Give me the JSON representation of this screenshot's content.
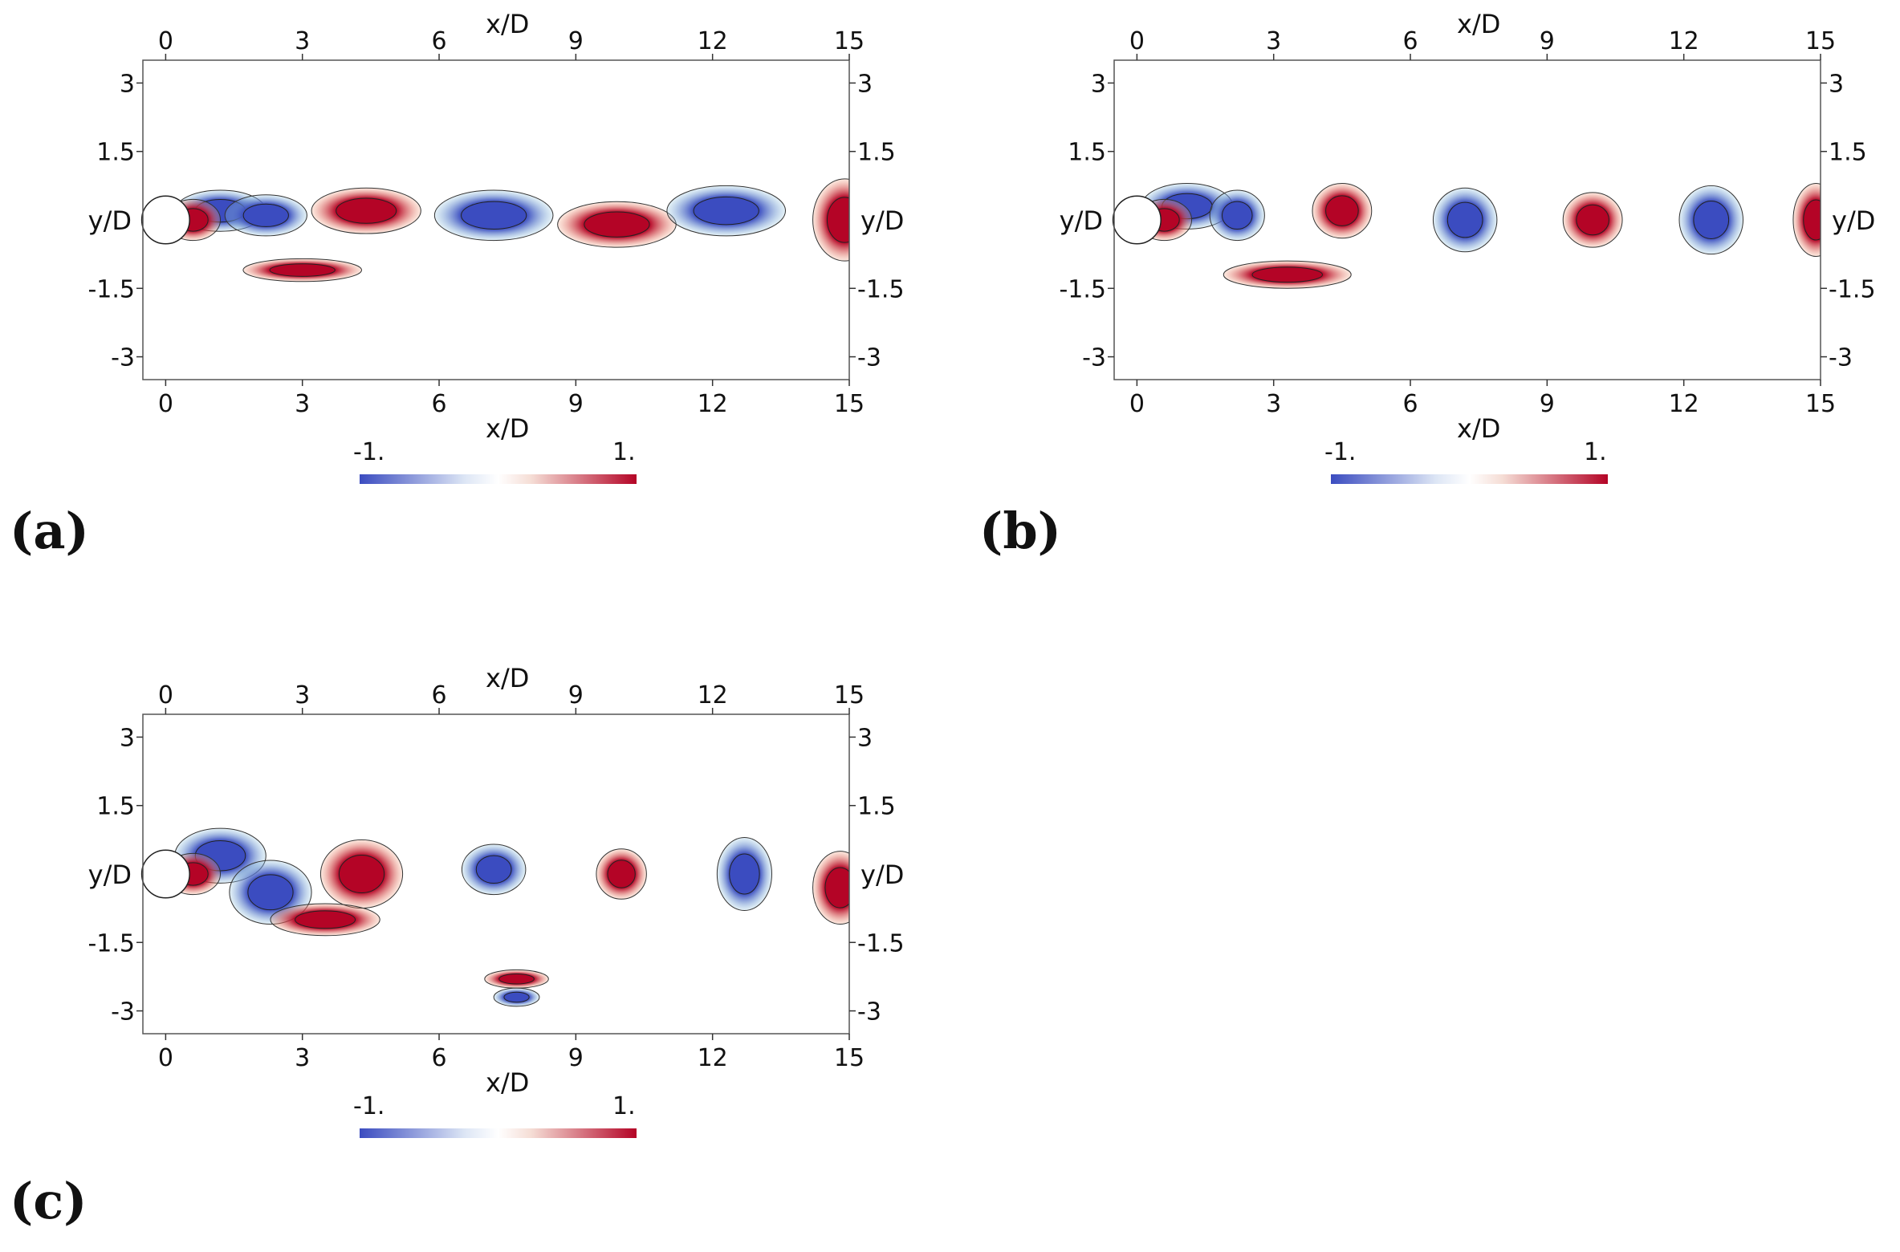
{
  "chart_data": [
    {
      "type": "heatmap",
      "panel_label": "(a)",
      "xlabel": "x/D",
      "ylabel": "y/D",
      "xlim": [
        -0.5,
        15
      ],
      "ylim": [
        -3.5,
        3.5
      ],
      "x_ticks": [
        "0",
        "3",
        "6",
        "9",
        "12",
        "15"
      ],
      "y_ticks": [
        "3",
        "1.5",
        "0",
        "-1.5",
        "-3"
      ],
      "colorbar": {
        "min_label": "-1.",
        "max_label": "1.",
        "min_color": "#3b4cc0",
        "max_color": "#b40426"
      },
      "vortices": [
        {
          "x": 1.2,
          "y": 0.2,
          "rx": 1.0,
          "ry": 0.45,
          "sign": -1
        },
        {
          "x": 0.6,
          "y": 0.0,
          "rx": 0.6,
          "ry": 0.45,
          "sign": 1
        },
        {
          "x": 2.2,
          "y": 0.1,
          "rx": 0.9,
          "ry": 0.45,
          "sign": -1
        },
        {
          "x": 4.4,
          "y": 0.2,
          "rx": 1.2,
          "ry": 0.5,
          "sign": 1
        },
        {
          "x": 7.2,
          "y": 0.1,
          "rx": 1.3,
          "ry": 0.55,
          "sign": -1
        },
        {
          "x": 9.9,
          "y": -0.1,
          "rx": 1.3,
          "ry": 0.5,
          "sign": 1
        },
        {
          "x": 12.3,
          "y": 0.2,
          "rx": 1.3,
          "ry": 0.55,
          "sign": -1
        },
        {
          "x": 14.9,
          "y": 0.0,
          "rx": 0.7,
          "ry": 0.9,
          "sign": 1
        },
        {
          "x": 3.0,
          "y": -1.1,
          "rx": 1.3,
          "ry": 0.25,
          "sign": 1
        }
      ]
    },
    {
      "type": "heatmap",
      "panel_label": "(b)",
      "xlabel": "x/D",
      "ylabel": "y/D",
      "xlim": [
        -0.5,
        15
      ],
      "ylim": [
        -3.5,
        3.5
      ],
      "x_ticks": [
        "0",
        "3",
        "6",
        "9",
        "12",
        "15"
      ],
      "y_ticks": [
        "3",
        "1.5",
        "0",
        "-1.5",
        "-3"
      ],
      "colorbar": {
        "min_label": "-1.",
        "max_label": "1.",
        "min_color": "#3b4cc0",
        "max_color": "#b40426"
      },
      "vortices": [
        {
          "x": 1.1,
          "y": 0.3,
          "rx": 1.0,
          "ry": 0.5,
          "sign": -1
        },
        {
          "x": 0.6,
          "y": 0.0,
          "rx": 0.6,
          "ry": 0.45,
          "sign": 1
        },
        {
          "x": 2.2,
          "y": 0.1,
          "rx": 0.6,
          "ry": 0.55,
          "sign": -1
        },
        {
          "x": 4.5,
          "y": 0.2,
          "rx": 0.65,
          "ry": 0.6,
          "sign": 1
        },
        {
          "x": 7.2,
          "y": 0.0,
          "rx": 0.7,
          "ry": 0.7,
          "sign": -1
        },
        {
          "x": 10.0,
          "y": 0.0,
          "rx": 0.65,
          "ry": 0.6,
          "sign": 1
        },
        {
          "x": 12.6,
          "y": 0.0,
          "rx": 0.7,
          "ry": 0.75,
          "sign": -1
        },
        {
          "x": 14.9,
          "y": 0.0,
          "rx": 0.5,
          "ry": 0.8,
          "sign": 1
        },
        {
          "x": 3.3,
          "y": -1.2,
          "rx": 1.4,
          "ry": 0.3,
          "sign": 1
        }
      ]
    },
    {
      "type": "heatmap",
      "panel_label": "(c)",
      "xlabel": "x/D",
      "ylabel": "y/D",
      "xlim": [
        -0.5,
        15
      ],
      "ylim": [
        -3.5,
        3.5
      ],
      "x_ticks": [
        "0",
        "3",
        "6",
        "9",
        "12",
        "15"
      ],
      "y_ticks": [
        "3",
        "1.5",
        "0",
        "-1.5",
        "-3"
      ],
      "colorbar": {
        "min_label": "-1.",
        "max_label": "1.",
        "min_color": "#3b4cc0",
        "max_color": "#b40426"
      },
      "vortices": [
        {
          "x": 1.2,
          "y": 0.4,
          "rx": 1.0,
          "ry": 0.6,
          "sign": -1
        },
        {
          "x": 0.6,
          "y": 0.0,
          "rx": 0.6,
          "ry": 0.45,
          "sign": 1
        },
        {
          "x": 2.3,
          "y": -0.4,
          "rx": 0.9,
          "ry": 0.7,
          "sign": -1
        },
        {
          "x": 4.3,
          "y": 0.0,
          "rx": 0.9,
          "ry": 0.75,
          "sign": 1
        },
        {
          "x": 3.5,
          "y": -1.0,
          "rx": 1.2,
          "ry": 0.35,
          "sign": 1
        },
        {
          "x": 7.2,
          "y": 0.1,
          "rx": 0.7,
          "ry": 0.55,
          "sign": -1
        },
        {
          "x": 10.0,
          "y": 0.0,
          "rx": 0.55,
          "ry": 0.55,
          "sign": 1
        },
        {
          "x": 12.7,
          "y": 0.0,
          "rx": 0.6,
          "ry": 0.8,
          "sign": -1
        },
        {
          "x": 14.8,
          "y": -0.3,
          "rx": 0.6,
          "ry": 0.8,
          "sign": 1
        },
        {
          "x": 7.7,
          "y": -2.3,
          "rx": 0.7,
          "ry": 0.2,
          "sign": 1
        },
        {
          "x": 7.7,
          "y": -2.7,
          "rx": 0.5,
          "ry": 0.2,
          "sign": -1
        }
      ]
    }
  ]
}
